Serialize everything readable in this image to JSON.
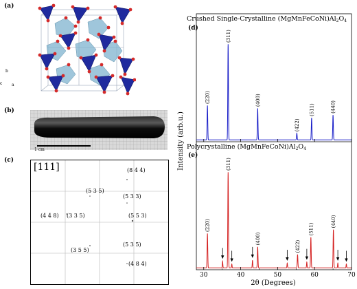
{
  "panels": {
    "a": "(a)",
    "b": "(b)",
    "c": "(c)",
    "d": "(d)",
    "e": "(e)"
  },
  "crystal": {
    "axes": [
      "b",
      "c",
      "a"
    ],
    "colors": {
      "tetrahedra": "#1f2a9e",
      "octahedra": "#7fb3cf",
      "oxygen": "#d42a2a"
    }
  },
  "rod": {
    "scale_label": "1 cm"
  },
  "laue": {
    "zone": "[111]",
    "spots": [
      "(8 4 4)",
      "(5 3 5)",
      "(5 3 3)",
      "(4 4 8)",
      "(3 3 5)",
      "(5 5 3)",
      "(3 5 5)",
      "(5 3 5)",
      "(4 8 4)"
    ]
  },
  "xrd": {
    "top_title_main": "Crushed Single-Crystalline (MgMnFeCoNi)Al",
    "top_title_sub": "2",
    "top_title_tail": "O",
    "top_title_sub2": "4",
    "bottom_title_main": "Polycrystalline (MgMnFeCoNi)Al",
    "bottom_title_sub": "2",
    "bottom_title_tail": "O",
    "bottom_title_sub2": "4",
    "ylabel": "Intensity (arb.u.)",
    "xlabel": "2θ (Degrees)",
    "xticks": [
      "30",
      "40",
      "50",
      "60",
      "70"
    ]
  },
  "chart_data": [
    {
      "type": "line",
      "title": "Crushed Single-Crystalline (MgMnFeCoNi)Al2O4",
      "xlim": [
        28,
        70
      ],
      "ylim": [
        0,
        1.05
      ],
      "color": "#1a1fc8",
      "peaks": [
        {
          "x": 31.0,
          "y": 0.36,
          "label": "(220)"
        },
        {
          "x": 36.6,
          "y": 1.0,
          "label": "(311)"
        },
        {
          "x": 44.6,
          "y": 0.33,
          "label": "(400)"
        },
        {
          "x": 55.2,
          "y": 0.07,
          "label": "(422)"
        },
        {
          "x": 59.2,
          "y": 0.23,
          "label": "(511)"
        },
        {
          "x": 65.0,
          "y": 0.26,
          "label": "(440)"
        }
      ]
    },
    {
      "type": "line",
      "title": "Polycrystalline (MgMnFeCoNi)Al2O4",
      "xlim": [
        28,
        70
      ],
      "ylim": [
        0,
        1.05
      ],
      "color": "#d42020",
      "peaks": [
        {
          "x": 31.0,
          "y": 0.36,
          "label": "(220)"
        },
        {
          "x": 36.6,
          "y": 1.0,
          "label": "(311)"
        },
        {
          "x": 44.6,
          "y": 0.22,
          "label": "(400)"
        },
        {
          "x": 55.4,
          "y": 0.14,
          "label": "(422)"
        },
        {
          "x": 59.0,
          "y": 0.32,
          "label": "(511)"
        },
        {
          "x": 65.1,
          "y": 0.4,
          "label": "(440)"
        }
      ],
      "impurity_peaks": [
        {
          "x": 35.1,
          "y": 0.07
        },
        {
          "x": 37.6,
          "y": 0.04
        },
        {
          "x": 43.2,
          "y": 0.08
        },
        {
          "x": 52.6,
          "y": 0.05
        },
        {
          "x": 57.9,
          "y": 0.06
        },
        {
          "x": 66.3,
          "y": 0.05
        },
        {
          "x": 68.6,
          "y": 0.04
        }
      ]
    }
  ]
}
